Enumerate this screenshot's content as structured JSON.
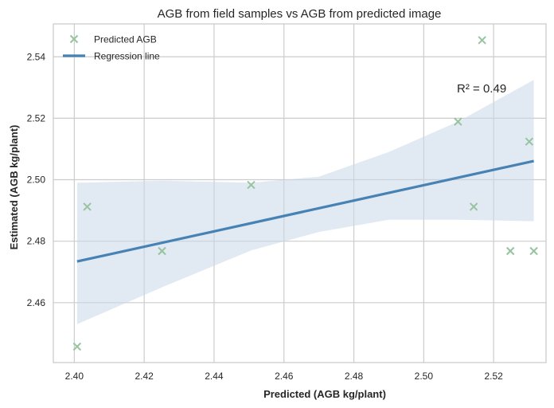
{
  "chart_data": {
    "type": "scatter",
    "title": "AGB from field samples vs AGB from predicted image",
    "xlabel": "Predicted (AGB kg/plant)",
    "ylabel": "Estimated (AGB kg/plant)",
    "xlim": [
      2.394,
      2.535
    ],
    "ylim": [
      2.4405,
      2.5507
    ],
    "xticks": [
      2.4,
      2.42,
      2.44,
      2.46,
      2.48,
      2.5,
      2.52
    ],
    "xtick_labels": [
      "2.40",
      "2.42",
      "2.44",
      "2.46",
      "2.48",
      "2.50",
      "2.52"
    ],
    "yticks": [
      2.46,
      2.48,
      2.5,
      2.52,
      2.54
    ],
    "ytick_labels": [
      "2.46",
      "2.48",
      "2.50",
      "2.52",
      "2.54"
    ],
    "grid": true,
    "legend_position": "top-left",
    "series": [
      {
        "name": "Predicted AGB",
        "kind": "scatter",
        "marker": "x",
        "color": "#97c49f",
        "points": [
          {
            "x": 2.4008,
            "y": 2.4457
          },
          {
            "x": 2.4037,
            "y": 2.4912
          },
          {
            "x": 2.4251,
            "y": 2.4768
          },
          {
            "x": 2.4506,
            "y": 2.4983
          },
          {
            "x": 2.5098,
            "y": 2.5189
          },
          {
            "x": 2.5143,
            "y": 2.4912
          },
          {
            "x": 2.5167,
            "y": 2.5454
          },
          {
            "x": 2.5248,
            "y": 2.4768
          },
          {
            "x": 2.5302,
            "y": 2.5124
          },
          {
            "x": 2.5315,
            "y": 2.4768
          }
        ]
      },
      {
        "name": "Regression line",
        "kind": "line",
        "color": "#4682b4",
        "points": [
          {
            "x": 2.4008,
            "y": 2.4734
          },
          {
            "x": 2.5315,
            "y": 2.5061
          }
        ]
      }
    ],
    "confidence_band": {
      "color": "#c8d7e8",
      "x": [
        2.4008,
        2.4251,
        2.4506,
        2.47,
        2.49,
        2.51,
        2.5315
      ],
      "lower": [
        2.453,
        2.465,
        2.477,
        2.483,
        2.487,
        2.487,
        2.4865
      ],
      "upper": [
        2.499,
        2.4997,
        2.499,
        2.501,
        2.509,
        2.519,
        2.5325
      ]
    },
    "annotations": [
      {
        "text": "R² = 0.49",
        "x": 2.5095,
        "y": 2.5284
      }
    ]
  }
}
